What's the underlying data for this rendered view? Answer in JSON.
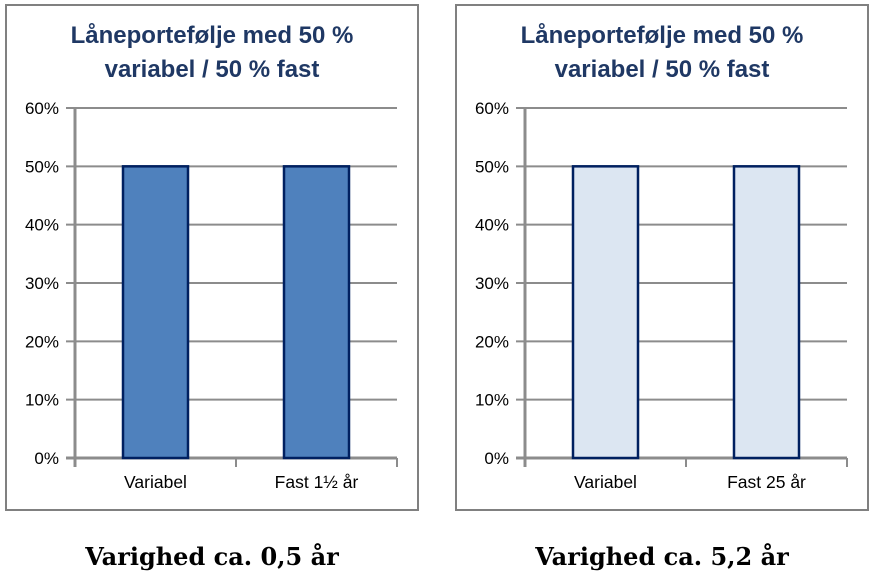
{
  "colors": {
    "title": "#1F3864",
    "gridline": "#8C8C8C",
    "axis": "#8C8C8C",
    "panel_border": "#808080",
    "label_text": "#000000"
  },
  "chart_data": [
    {
      "type": "bar",
      "title": "Låneportefølje med 50 % variabel / 50 % fast",
      "title_lines": [
        "Låneportefølje med 50 %",
        "variabel / 50 % fast"
      ],
      "categories": [
        "Variabel",
        "Fast 1½ år"
      ],
      "values": [
        50,
        50
      ],
      "xlabel": "",
      "ylabel": "",
      "ylim": [
        0,
        60
      ],
      "ytick_step": 10,
      "ytick_labels": [
        "0%",
        "10%",
        "20%",
        "30%",
        "40%",
        "50%",
        "60%"
      ],
      "grid": true,
      "legend": "none",
      "bar_fill": "#4F81BD",
      "bar_border": "#002060",
      "caption": "Varighed ca. 0,5 år"
    },
    {
      "type": "bar",
      "title": "Låneportefølje med 50 % variabel / 50 % fast",
      "title_lines": [
        "Låneportefølje med 50 %",
        "variabel / 50 % fast"
      ],
      "categories": [
        "Variabel",
        "Fast 25 år"
      ],
      "values": [
        50,
        50
      ],
      "xlabel": "",
      "ylabel": "",
      "ylim": [
        0,
        60
      ],
      "ytick_step": 10,
      "ytick_labels": [
        "0%",
        "10%",
        "20%",
        "30%",
        "40%",
        "50%",
        "60%"
      ],
      "grid": true,
      "legend": "none",
      "bar_fill": "#DCE6F2",
      "bar_border": "#002060",
      "caption": "Varighed ca. 5,2 år"
    }
  ]
}
